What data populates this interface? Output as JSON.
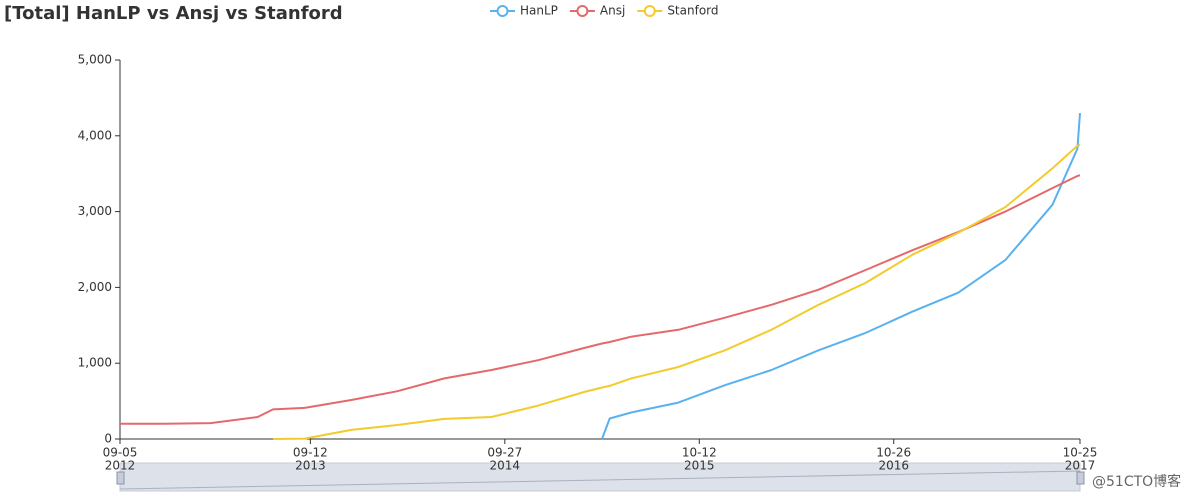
{
  "chart_data": {
    "type": "line",
    "title": "[Total] HanLP vs Ansj vs Stanford",
    "x": [
      "2012-09-05",
      "2012-12-01",
      "2013-03-01",
      "2013-06-01",
      "2013-07-01",
      "2013-09-01",
      "2013-12-01",
      "2014-03-01",
      "2014-06-01",
      "2014-09-01",
      "2014-12-01",
      "2015-03-01",
      "2015-04-05",
      "2015-04-20",
      "2015-06-01",
      "2015-09-01",
      "2015-12-01",
      "2016-03-01",
      "2016-06-01",
      "2016-09-01",
      "2016-12-01",
      "2017-03-01",
      "2017-06-01",
      "2017-09-01",
      "2017-10-20",
      "2017-10-25"
    ],
    "series": [
      {
        "name": "HanLP",
        "color": "#5ab1ef",
        "values": [
          null,
          null,
          null,
          null,
          null,
          null,
          null,
          null,
          null,
          null,
          null,
          null,
          0,
          270,
          350,
          480,
          710,
          910,
          1170,
          1400,
          1680,
          1930,
          2360,
          3090,
          3830,
          4300
        ]
      },
      {
        "name": "Ansj",
        "color": "#e5686b",
        "values": [
          200,
          200,
          210,
          290,
          390,
          410,
          515,
          630,
          800,
          910,
          1040,
          1200,
          1260,
          1280,
          1350,
          1440,
          1600,
          1770,
          1970,
          2230,
          2490,
          2730,
          3000,
          3310,
          3470,
          3480
        ]
      },
      {
        "name": "Stanford",
        "color": "#f2cb2c",
        "values": [
          null,
          null,
          null,
          null,
          0,
          5,
          120,
          185,
          265,
          290,
          440,
          620,
          680,
          700,
          800,
          950,
          1170,
          1440,
          1770,
          2060,
          2430,
          2720,
          3060,
          3570,
          3870,
          3880
        ]
      }
    ],
    "xlim": [
      "2012-09-05",
      "2017-10-25"
    ],
    "xticks": [
      {
        "value": "2012-09-05",
        "label": [
          "09-05",
          "2012"
        ]
      },
      {
        "value": "2013-09-12",
        "label": [
          "09-12",
          "2013"
        ]
      },
      {
        "value": "2014-09-27",
        "label": [
          "09-27",
          "2014"
        ]
      },
      {
        "value": "2015-10-12",
        "label": [
          "10-12",
          "2015"
        ]
      },
      {
        "value": "2016-10-26",
        "label": [
          "10-26",
          "2016"
        ]
      },
      {
        "value": "2017-10-25",
        "label": [
          "10-25",
          "2017"
        ]
      }
    ],
    "ylim": [
      0,
      5000
    ],
    "yticks": [
      0,
      {
        "value": 1000,
        "label": "1,000"
      },
      {
        "value": 2000,
        "label": "2,000"
      },
      {
        "value": 3000,
        "label": "3,000"
      },
      {
        "value": 4000,
        "label": "4,000"
      },
      {
        "value": 5000,
        "label": "5,000"
      }
    ],
    "grid": false,
    "legend": "top",
    "watermark": "@51CTO博客"
  }
}
